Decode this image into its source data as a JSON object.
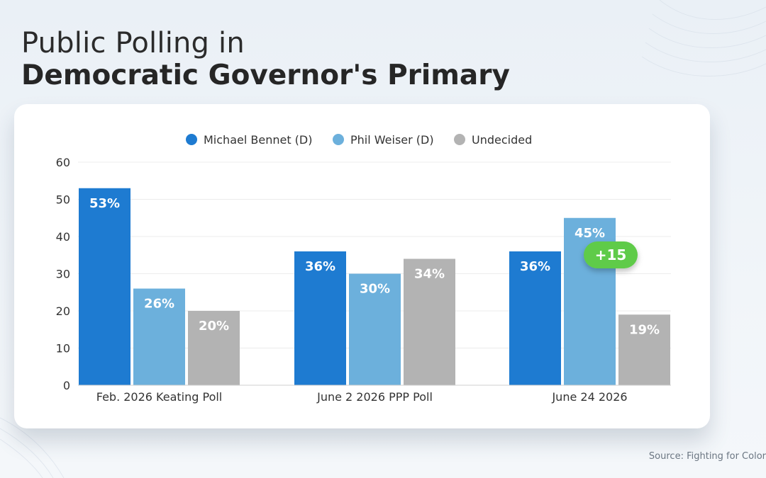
{
  "header": {
    "title_line1": "Public Polling in",
    "title_line2": "Democratic Governor's Primary"
  },
  "source": "Source: Fighting for Color",
  "annotation": {
    "label": "+15",
    "color": "#5fcb4a"
  },
  "colors": {
    "bennet": "#1e7bd1",
    "weiser": "#6cb0dc",
    "undecided": "#b3b3b3"
  },
  "chart_data": {
    "type": "bar",
    "categories": [
      "Feb. 2026 Keating Poll",
      "June 2 2026 PPP Poll",
      "June 24 2026"
    ],
    "series": [
      {
        "name": "Michael Bennet (D)",
        "values": [
          53,
          36,
          36
        ],
        "labels": [
          "53%",
          "36%",
          "36%"
        ]
      },
      {
        "name": "Phil Weiser (D)",
        "values": [
          26,
          30,
          45
        ],
        "labels": [
          "26%",
          "30%",
          "45%"
        ]
      },
      {
        "name": "Undecided",
        "values": [
          20,
          34,
          19
        ],
        "labels": [
          "20%",
          "34%",
          "19%"
        ]
      }
    ],
    "yticks": [
      "0",
      "10",
      "20",
      "30",
      "40",
      "50",
      "60"
    ],
    "ylim": [
      0,
      60
    ],
    "grid": true,
    "legend": "top-center"
  }
}
